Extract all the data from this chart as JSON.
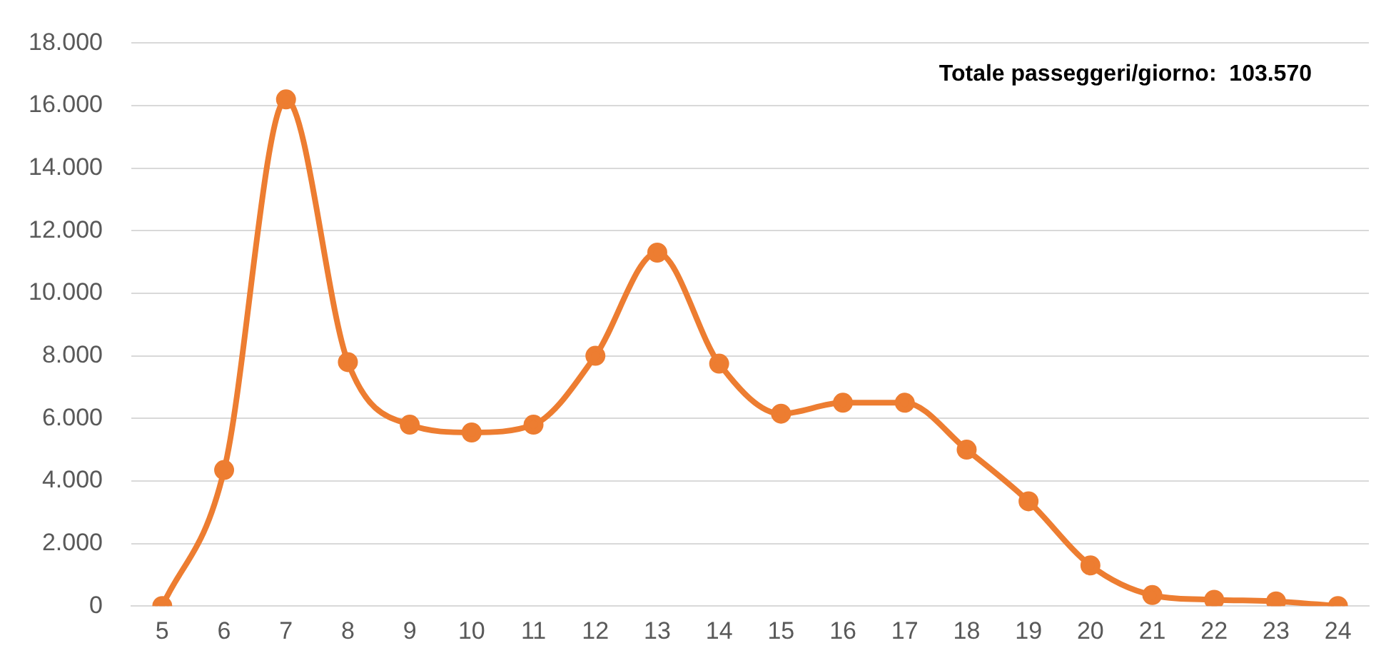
{
  "chart_data": {
    "type": "line",
    "categories": [
      "5",
      "6",
      "7",
      "8",
      "9",
      "10",
      "11",
      "12",
      "13",
      "14",
      "15",
      "16",
      "17",
      "18",
      "19",
      "20",
      "21",
      "22",
      "23",
      "24"
    ],
    "series": [
      {
        "color": "#ed7d31",
        "values": [
          0,
          4350,
          16200,
          7800,
          5800,
          5550,
          5800,
          8000,
          11300,
          7750,
          6150,
          6500,
          6500,
          5000,
          3350,
          1300,
          350,
          200,
          150,
          0
        ]
      }
    ],
    "ylim": [
      0,
      18000
    ],
    "yticks": [
      {
        "value": 0,
        "label": "0"
      },
      {
        "value": 2000,
        "label": "2.000"
      },
      {
        "value": 4000,
        "label": "4.000"
      },
      {
        "value": 6000,
        "label": "6.000"
      },
      {
        "value": 8000,
        "label": "8.000"
      },
      {
        "value": 10000,
        "label": "10.000"
      },
      {
        "value": 12000,
        "label": "12.000"
      },
      {
        "value": 14000,
        "label": "14.000"
      },
      {
        "value": 16000,
        "label": "16.000"
      },
      {
        "value": 18000,
        "label": "18.000"
      }
    ],
    "grid": "y",
    "legend": false,
    "marker": "circle",
    "line_style": "solid",
    "annotations": [
      "Totale passeggeri/giorno:  103.570"
    ]
  }
}
